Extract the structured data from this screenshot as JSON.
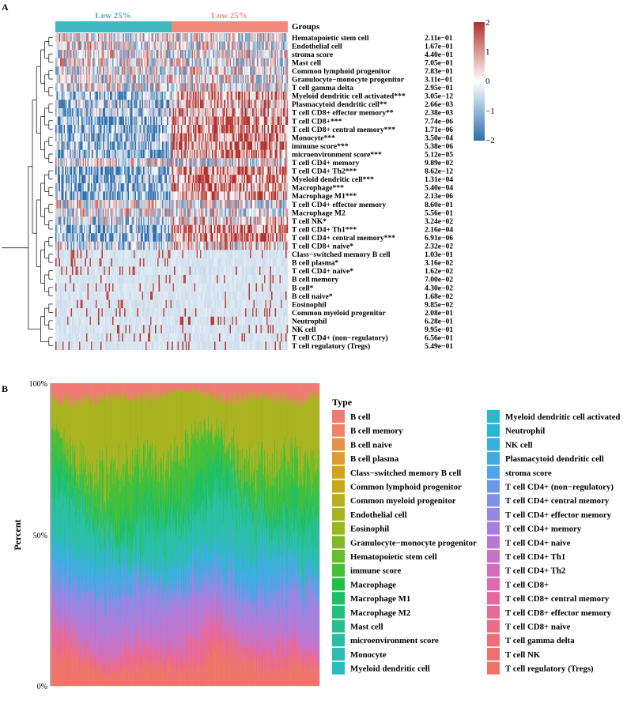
{
  "panel_labels": {
    "a": "A",
    "b": "B"
  },
  "chart_data": [
    {
      "type": "heatmap",
      "annotation_title": "Groups",
      "groups": [
        {
          "label": "Low 25%",
          "color": "#3fb8bf"
        },
        {
          "label": "Low 25%",
          "color": "#f08a7b"
        }
      ],
      "colorbar": {
        "range": [
          -2,
          2
        ],
        "ticks": [
          "2",
          "1",
          "0",
          "−1",
          "−2"
        ],
        "colors": [
          "#2b6fae",
          "#ffffff",
          "#b4302b"
        ]
      },
      "rows": [
        "Hematopoietic stem cell",
        "Endothelial cell",
        "stroma score",
        "Mast cell",
        "Common lymphoid progenitor",
        "Granulocyte−monocyte progenitor",
        "T cell gamma delta",
        "Myeloid dendritic cell activated***",
        "Plasmacytoid dendritic cell**",
        "T cell CD8+ effector memory**",
        "T cell CD8+***",
        "T cell CD8+ central memory***",
        "Monocyte***",
        "immune score***",
        "microenvironment score***",
        "T cell CD4+ memory",
        "T cell CD4+ Th2***",
        "Myeloid dendritic cell***",
        "Macrophage***",
        "Macrophage M1***",
        "T cell CD4+ effector memory",
        "Macrophage M2",
        "T cell NK*",
        "T cell CD4+ Th1***",
        "T cell CD4+ central memory***",
        "T cell CD8+ naive*",
        "Class−switched memory B cell",
        "B cell plasma*",
        "T cell CD4+ naive*",
        "B cell memory",
        "B cell*",
        "B cell naive*",
        "Eosinophil",
        "Common myeloid progenitor",
        "Neutrophil",
        "NK cell",
        "T cell CD4+ (non−regulatory)",
        "T cell regulatory (Tregs)"
      ],
      "pvalues": [
        "2.11e−01",
        "1.67e−01",
        "4.40e−01",
        "7.05e−01",
        "7.83e−01",
        "3.11e−01",
        "2.95e−01",
        "3.05e−12",
        "2.66e−03",
        "2.38e−03",
        "7.74e−06",
        "1.71e−06",
        "3.50e−04",
        "5.38e−06",
        "5.12e−05",
        "9.89e−02",
        "8.62e−12",
        "1.31e−04",
        "5.40e−04",
        "2.13e−06",
        "8.60e−01",
        "5.56e−01",
        "3.24e−02",
        "2.16e−04",
        "6.91e−06",
        "2.32e−02",
        "1.03e−01",
        "3.16e−02",
        "1.62e−02",
        "7.00e−02",
        "4.30e−02",
        "1.68e−02",
        "9.85e−02",
        "2.08e−01",
        "6.28e−01",
        "9.95e−01",
        "6.56e−01",
        "5.49e−01"
      ]
    },
    {
      "type": "area",
      "ylabel": "Percent",
      "yticks": [
        "0%",
        "50%",
        "100%"
      ],
      "legend_title": "Type",
      "legend": [
        {
          "name": "B cell",
          "color": "#f07a74"
        },
        {
          "name": "B cell memory",
          "color": "#ee8560"
        },
        {
          "name": "B cell naive",
          "color": "#e8904a"
        },
        {
          "name": "B cell plasma",
          "color": "#df9a32"
        },
        {
          "name": "Class−switched memory B cell",
          "color": "#d4a21b"
        },
        {
          "name": "Common lymphoid progenitor",
          "color": "#c7a918"
        },
        {
          "name": "Common myeloid progenitor",
          "color": "#b9ae1c"
        },
        {
          "name": "Endothelial cell",
          "color": "#a9b21f"
        },
        {
          "name": "Eosinophil",
          "color": "#97b621"
        },
        {
          "name": "Granulocyte−monocyte progenitor",
          "color": "#81ba26"
        },
        {
          "name": "Hematopoietic stem cell",
          "color": "#66bd2d"
        },
        {
          "name": "immune score",
          "color": "#45bf37"
        },
        {
          "name": "Macrophage",
          "color": "#21c045"
        },
        {
          "name": "Macrophage M1",
          "color": "#1ec063"
        },
        {
          "name": "Macrophage M2",
          "color": "#22c07b"
        },
        {
          "name": "Mast cell",
          "color": "#26bf90"
        },
        {
          "name": "microenvironment score",
          "color": "#29bea3"
        },
        {
          "name": "Monocyte",
          "color": "#2bbcb3"
        },
        {
          "name": "Myeloid dendritic cell",
          "color": "#2abbc0"
        },
        {
          "name": "Myeloid dendritic cell activated",
          "color": "#28b9cb"
        },
        {
          "name": "Neutrophil",
          "color": "#2bb5d4"
        },
        {
          "name": "NK cell",
          "color": "#34b0dc"
        },
        {
          "name": "Plasmacytoid dendritic cell",
          "color": "#42a9e2"
        },
        {
          "name": "stroma score",
          "color": "#55a2e6"
        },
        {
          "name": "T cell CD4+ (non−regulatory)",
          "color": "#6b99e8"
        },
        {
          "name": "T cell CD4+ central memory",
          "color": "#8090e7"
        },
        {
          "name": "T cell CD4+ effector memory",
          "color": "#9487e3"
        },
        {
          "name": "T cell CD4+ memory",
          "color": "#a67fdc"
        },
        {
          "name": "T cell CD4+ naive",
          "color": "#b778d4"
        },
        {
          "name": "T cell CD4+ Th1",
          "color": "#c672ca"
        },
        {
          "name": "T cell CD4+ Th2",
          "color": "#d26dbe"
        },
        {
          "name": "T cell CD8+",
          "color": "#dc6ab1"
        },
        {
          "name": "T cell CD8+ central memory",
          "color": "#e468a3"
        },
        {
          "name": "T cell CD8+ effector memory",
          "color": "#ea6894"
        },
        {
          "name": "T cell CD8+ naive",
          "color": "#ee6a86"
        },
        {
          "name": "T cell gamma delta",
          "color": "#f06d79"
        },
        {
          "name": "T cell NK",
          "color": "#f0706e"
        },
        {
          "name": "T cell regulatory (Tregs)",
          "color": "#ef7369"
        }
      ],
      "stack_order_bottom_to_top": [
        "T cell regulatory (Tregs)",
        "T cell CD8+ effector memory",
        "T cell CD4+ Th1",
        "T cell CD4+ memory",
        "T cell CD4+ effector memory",
        "stroma score",
        "NK cell",
        "microenvironment score",
        "Macrophage M1",
        "immune score",
        "Endothelial cell",
        "B cell"
      ],
      "stack_mean_share": [
        8,
        6,
        7,
        6,
        5,
        5,
        6,
        13,
        8,
        12,
        20,
        4
      ]
    }
  ]
}
